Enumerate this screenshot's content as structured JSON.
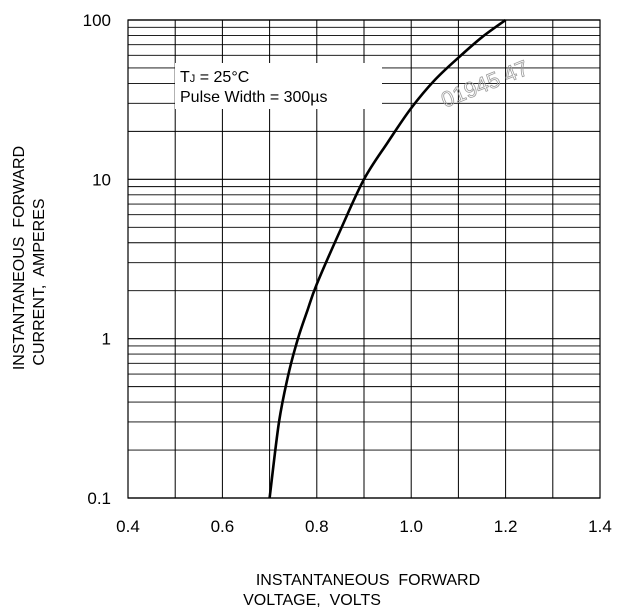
{
  "chart_data": {
    "type": "line",
    "x_scale": "linear",
    "y_scale": "log",
    "xlim": [
      0.4,
      1.4
    ],
    "ylim": [
      0.1,
      100
    ],
    "x_ticks": [
      0.4,
      0.6,
      0.8,
      1.0,
      1.2,
      1.4
    ],
    "x_tick_labels": [
      "0.4",
      "0.6",
      "0.8",
      "1.0",
      "1.2",
      "1.4"
    ],
    "y_ticks": [
      0.1,
      1,
      10,
      100
    ],
    "y_tick_labels": [
      "0.1",
      "1",
      "10",
      "100"
    ],
    "grid": true,
    "xlabel": [
      "INSTANTANEOUS  FORWARD",
      "VOLTAGE,  VOLTS"
    ],
    "ylabel": [
      "INSTANTANEOUS  FORWARD",
      "CURRENT,  AMPERES"
    ],
    "annotation": {
      "tj_prefix": "T",
      "tj_subscript": "J",
      "tj_suffix": " = 25°C",
      "pulse": "Pulse Width = 300µs"
    },
    "series": [
      {
        "x": [
          0.7,
          0.72,
          0.74,
          0.76,
          0.78,
          0.8,
          0.85,
          0.9,
          0.95,
          1.0,
          1.05,
          1.1,
          1.15,
          1.2
        ],
        "y": [
          0.1,
          0.3,
          0.6,
          1.0,
          1.5,
          2.2,
          4.8,
          10,
          17,
          28,
          42,
          58,
          78,
          100
        ],
        "color": "#000000"
      }
    ]
  },
  "watermark": "01945 47"
}
